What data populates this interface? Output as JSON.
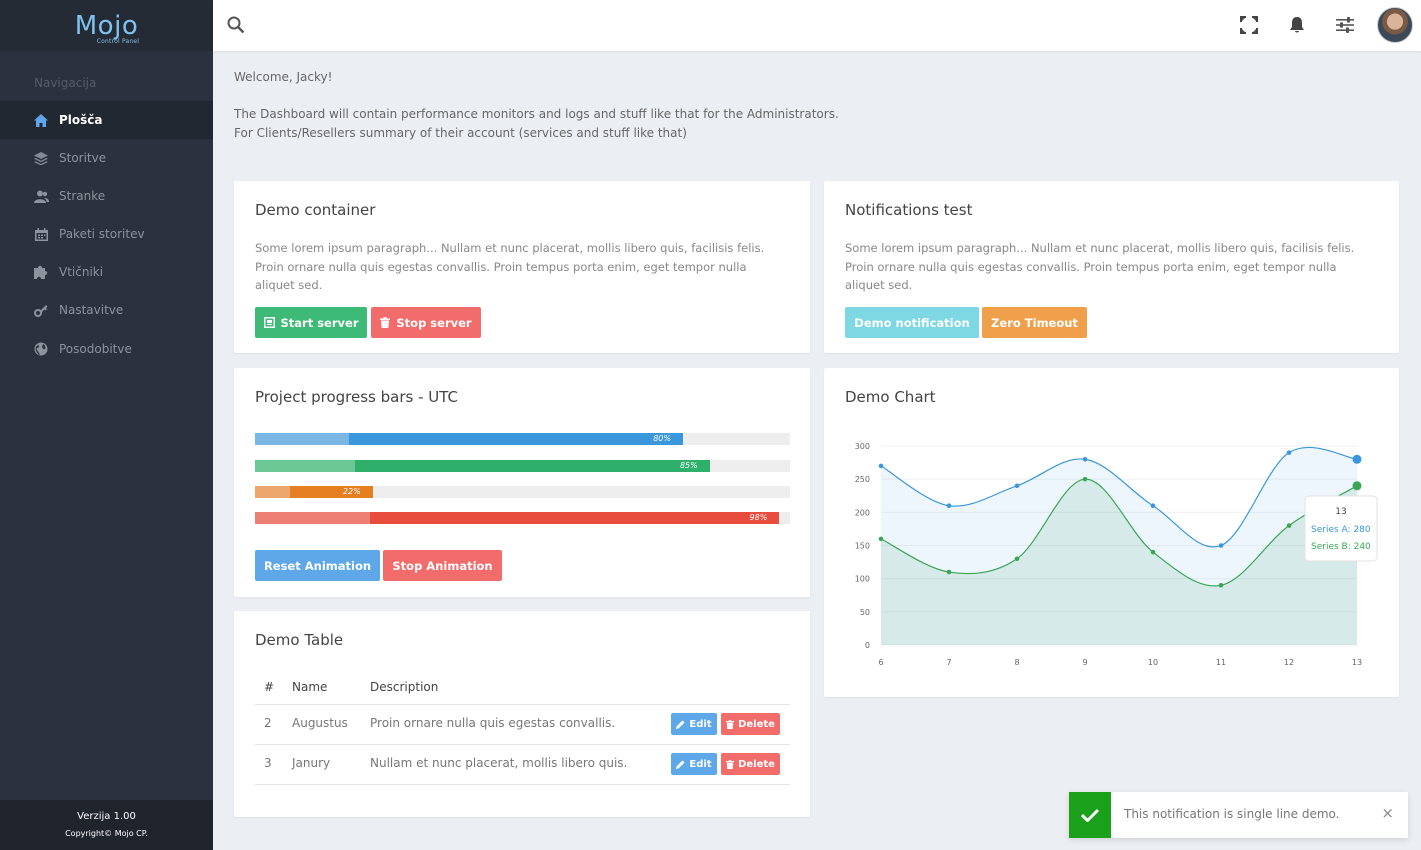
{
  "sidebar": {
    "logo": "Mojo",
    "logo_sub": "Control Panel",
    "heading": "Navigacija",
    "items": [
      {
        "label": "Plošča",
        "icon": "home-icon",
        "active": true
      },
      {
        "label": "Storitve",
        "icon": "layers-icon",
        "active": false
      },
      {
        "label": "Stranke",
        "icon": "users-icon",
        "active": false
      },
      {
        "label": "Paketi storitev",
        "icon": "calendar-icon",
        "active": false
      },
      {
        "label": "Vtičniki",
        "icon": "puzzle-icon",
        "active": false
      },
      {
        "label": "Nastavitve",
        "icon": "key-icon",
        "active": false
      },
      {
        "label": "Posodobitve",
        "icon": "globe-icon",
        "active": false
      }
    ],
    "version": "Verzija 1.00",
    "copyright": "Copyright© Mojo CP."
  },
  "topbar": {
    "icons": [
      "search-icon",
      "fullscreen-icon",
      "bell-icon",
      "sliders-icon",
      "avatar"
    ]
  },
  "intro": {
    "welcome": "Welcome, Jacky!",
    "line1": "The Dashboard will contain performance monitors and logs and stuff like that for the Administrators.",
    "line2": "For Clients/Resellers summary of their account (services and stuff like that)"
  },
  "demo_container": {
    "title": "Demo container",
    "text": "Some lorem ipsum paragraph... Nullam et nunc placerat, mollis libero quis, facilisis felis. Proin ornare nulla quis egestas convallis. Proin tempus porta enim, eget tempor nulla aliquet sed.",
    "start_label": "Start server",
    "stop_label": "Stop server"
  },
  "notifications_test": {
    "title": "Notifications test",
    "text": "Some lorem ipsum paragraph... Nullam et nunc placerat, mollis libero quis, facilisis felis. Proin ornare nulla quis egestas convallis. Proin tempus porta enim, eget tempor nulla aliquet sed.",
    "demo_label": "Demo notification",
    "zero_label": "Zero Timeout"
  },
  "progress": {
    "title": "Project progress bars - UTC",
    "bars": [
      {
        "value": 0.8,
        "label": "80%",
        "color": "#3a97dc",
        "light": "#7ab6e4"
      },
      {
        "value": 0.85,
        "label": "85%",
        "color": "#2fb06a",
        "light": "#6cc895"
      },
      {
        "value": 0.22,
        "label": "22%",
        "color": "#e67e22",
        "light": "#eda66b"
      },
      {
        "value": 0.98,
        "label": "98%",
        "color": "#e74c3c",
        "light": "#ee7f75"
      }
    ],
    "reset_label": "Reset Animation",
    "stop_label": "Stop Animation"
  },
  "table": {
    "title": "Demo Table",
    "headers": [
      "#",
      "Name",
      "Description"
    ],
    "rows": [
      {
        "id": "2",
        "name": "Augustus",
        "description": "Proin ornare nulla quis egestas convallis."
      },
      {
        "id": "3",
        "name": "Janury",
        "description": "Nullam et nunc placerat, mollis libero quis."
      }
    ],
    "edit_label": "Edit",
    "delete_label": "Delete"
  },
  "chart": {
    "title": "Demo Chart",
    "tooltip": {
      "title": "13",
      "a_label": "Series A: 280",
      "b_label": "Series B: 240"
    }
  },
  "chart_data": {
    "type": "area",
    "x": [
      6,
      7,
      8,
      9,
      10,
      11,
      12,
      13
    ],
    "series": [
      {
        "name": "Series A",
        "values": [
          270,
          210,
          240,
          280,
          210,
          150,
          290,
          280
        ],
        "color": "#3a97dc"
      },
      {
        "name": "Series B",
        "values": [
          160,
          110,
          130,
          250,
          140,
          90,
          180,
          240
        ],
        "color": "#3aa655"
      }
    ],
    "ylim": [
      0,
      300
    ],
    "yticks": [
      0,
      50,
      100,
      150,
      200,
      250,
      300
    ],
    "xlabel": "",
    "ylabel": "",
    "grid": true
  },
  "toast": {
    "text": "This notification is single line demo.",
    "close": "×"
  }
}
